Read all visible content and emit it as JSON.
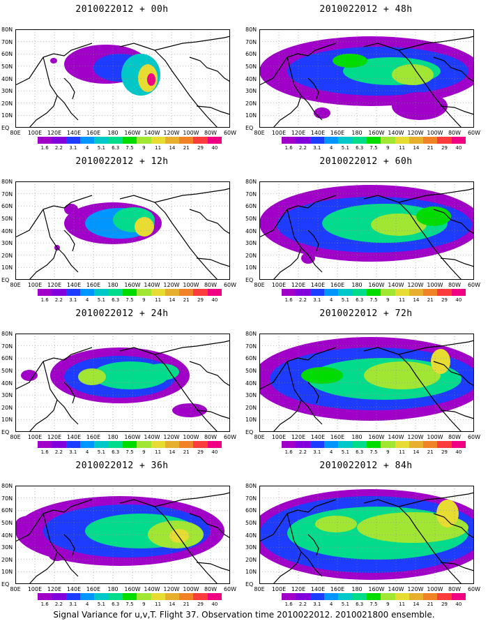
{
  "caption": "Signal Variance for u,v,T. Flight 37. Observation time 2010022012. 2010021800 ensemble.",
  "chart_data": {
    "type": "heatmap",
    "colorbar": {
      "levels": [
        "1.6",
        "2.2",
        "3.1",
        "4",
        "5.1",
        "6.3",
        "7.5",
        "9",
        "11",
        "14",
        "21",
        "29",
        "40"
      ],
      "colors": [
        "#a000c8",
        "#8200dc",
        "#1e3cff",
        "#0096ff",
        "#00c8c8",
        "#00dc8c",
        "#00dc00",
        "#a0e632",
        "#e6dc32",
        "#e6af2d",
        "#f08228",
        "#fa3c3c",
        "#f00082"
      ]
    },
    "lat_labels": [
      "80N",
      "70N",
      "60N",
      "50N",
      "40N",
      "30N",
      "20N",
      "10N",
      "EQ"
    ],
    "lon_labels": [
      "80E",
      "100E",
      "120E",
      "140E",
      "160E",
      "180",
      "160W",
      "140W",
      "120W",
      "100W",
      "80W",
      "60W"
    ],
    "panels": [
      {
        "title": "2010022012 + 00h",
        "lead": 0
      },
      {
        "title": "2010022012 + 48h",
        "lead": 48
      },
      {
        "title": "2010022012 + 12h",
        "lead": 12
      },
      {
        "title": "2010022012 + 60h",
        "lead": 60
      },
      {
        "title": "2010022012 + 24h",
        "lead": 24
      },
      {
        "title": "2010022012 + 72h",
        "lead": 72
      },
      {
        "title": "2010022012 + 36h",
        "lead": 36
      },
      {
        "title": "2010022012 + 84h",
        "lead": 84
      }
    ]
  }
}
